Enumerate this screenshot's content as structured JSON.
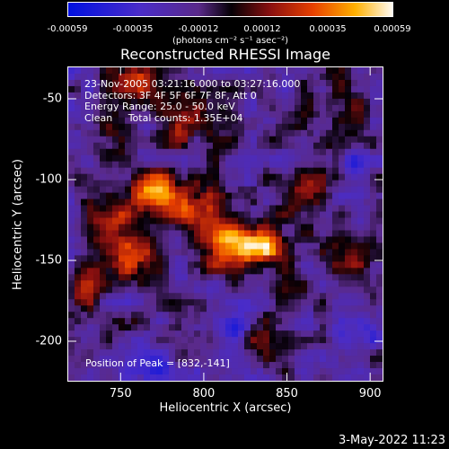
{
  "colorbar": {
    "ticks": [
      "-0.00059",
      "-0.00035",
      "-0.00012",
      "0.00012",
      "0.00035",
      "0.00059"
    ],
    "unit": "(photons cm⁻² s⁻¹ asec⁻²)"
  },
  "chart_data": {
    "type": "heatmap",
    "title": "Reconstructed RHESSI Image",
    "xlabel": "Heliocentric X (arcsec)",
    "ylabel": "Heliocentric Y (arcsec)",
    "xlim": [
      718,
      908
    ],
    "ylim": [
      -225,
      -30
    ],
    "x_ticks": [
      750,
      800,
      850,
      900
    ],
    "y_ticks": [
      -50,
      -100,
      -150,
      -200
    ],
    "colorbar_range": [
      -0.00059,
      0.00059
    ],
    "peak": [
      832,
      -141
    ],
    "blobs": [
      {
        "x": 832,
        "y": -141,
        "v": 1.0,
        "sx": 14,
        "sy": 10
      },
      {
        "x": 810,
        "y": -140,
        "v": 0.8,
        "sx": 12,
        "sy": 10
      },
      {
        "x": 770,
        "y": -105,
        "v": 0.75,
        "sx": 12,
        "sy": 10
      },
      {
        "x": 795,
        "y": -118,
        "v": 0.7,
        "sx": 12,
        "sy": 9
      },
      {
        "x": 745,
        "y": -128,
        "v": 0.6,
        "sx": 12,
        "sy": 10
      },
      {
        "x": 728,
        "y": -165,
        "v": 0.75,
        "sx": 8,
        "sy": 10
      },
      {
        "x": 760,
        "y": -150,
        "v": 0.55,
        "sx": 14,
        "sy": 10
      },
      {
        "x": 790,
        "y": -65,
        "v": 0.55,
        "sx": 14,
        "sy": 10
      },
      {
        "x": 860,
        "y": -110,
        "v": 0.55,
        "sx": 10,
        "sy": 10
      },
      {
        "x": 885,
        "y": -145,
        "v": 0.5,
        "sx": 10,
        "sy": 10
      },
      {
        "x": 760,
        "y": -40,
        "v": 0.55,
        "sx": 12,
        "sy": 8
      },
      {
        "x": 885,
        "y": -55,
        "v": 0.45,
        "sx": 14,
        "sy": 10
      },
      {
        "x": 850,
        "y": -175,
        "v": 0.45,
        "sx": 10,
        "sy": 8
      },
      {
        "x": 830,
        "y": -200,
        "v": 0.4,
        "sx": 10,
        "sy": 10
      },
      {
        "x": 745,
        "y": -75,
        "v": 0.4,
        "sx": 10,
        "sy": 10
      },
      {
        "x": 820,
        "y": -195,
        "v": -0.6,
        "sx": 7,
        "sy": 8
      },
      {
        "x": 890,
        "y": -90,
        "v": -0.45,
        "sx": 6,
        "sy": 6
      },
      {
        "x": 770,
        "y": -215,
        "v": -0.3,
        "sx": 10,
        "sy": 8
      },
      {
        "x": 895,
        "y": -195,
        "v": -0.3,
        "sx": 10,
        "sy": 10
      }
    ]
  },
  "annotation": {
    "time": "23-Nov-2005 03:21:16.000 to 03:27:16.000",
    "detectors": "Detectors: 3F 4F 5F 6F 7F 8F, Att 0",
    "energy": "Energy Range: 25.0 - 50.0 keV",
    "clean": "Clean     Total counts: 1.35E+04",
    "peak": "Position of Peak = [832,-141]"
  },
  "footer": "3-May-2022 11:23"
}
